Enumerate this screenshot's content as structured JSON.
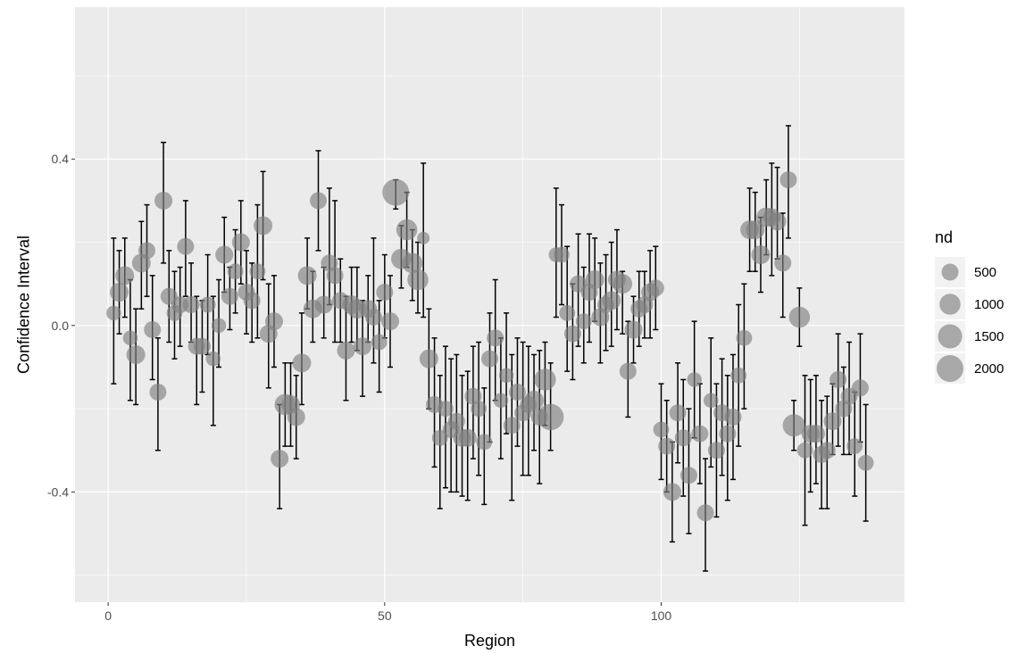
{
  "chart_data": {
    "type": "scatter",
    "xlabel": "Region",
    "ylabel": "Confidence Interval",
    "xlim": [
      -6,
      144
    ],
    "ylim": [
      -0.665,
      0.765
    ],
    "x_ticks": [
      0,
      50,
      100
    ],
    "x_tick_labels": [
      "0",
      "50",
      "100"
    ],
    "y_ticks": [
      -0.4,
      0.0,
      0.4
    ],
    "y_tick_labels": [
      "-0.4",
      "0.0",
      "0.4"
    ],
    "grid": true,
    "legend": {
      "title": "nd",
      "position": "right",
      "entries": [
        {
          "label": "500",
          "value": 500
        },
        {
          "label": "1000",
          "value": 1000
        },
        {
          "label": "1500",
          "value": 1500
        },
        {
          "label": "2000",
          "value": 2000
        }
      ]
    },
    "colors": {
      "panel": "#ebebeb",
      "grid": "#ffffff",
      "point": "#808080",
      "errorbar": "#000000"
    },
    "points": [
      {
        "x": 1,
        "y": 0.03,
        "lo": -0.14,
        "hi": 0.21,
        "nd": 300
      },
      {
        "x": 2,
        "y": 0.08,
        "lo": -0.02,
        "hi": 0.18,
        "nd": 700
      },
      {
        "x": 3,
        "y": 0.12,
        "lo": 0.02,
        "hi": 0.21,
        "nd": 700
      },
      {
        "x": 4,
        "y": -0.03,
        "lo": -0.18,
        "hi": 0.11,
        "nd": 300
      },
      {
        "x": 5,
        "y": -0.07,
        "lo": -0.19,
        "hi": 0.04,
        "nd": 700
      },
      {
        "x": 6,
        "y": 0.15,
        "lo": 0.04,
        "hi": 0.25,
        "nd": 700
      },
      {
        "x": 7,
        "y": 0.18,
        "lo": 0.07,
        "hi": 0.29,
        "nd": 500
      },
      {
        "x": 8,
        "y": -0.01,
        "lo": -0.13,
        "hi": 0.12,
        "nd": 500
      },
      {
        "x": 9,
        "y": -0.16,
        "lo": -0.3,
        "hi": -0.03,
        "nd": 500
      },
      {
        "x": 10,
        "y": 0.3,
        "lo": 0.15,
        "hi": 0.44,
        "nd": 600
      },
      {
        "x": 11,
        "y": 0.07,
        "lo": -0.04,
        "hi": 0.18,
        "nd": 500
      },
      {
        "x": 12,
        "y": 0.03,
        "lo": -0.08,
        "hi": 0.13,
        "nd": 400
      },
      {
        "x": 13,
        "y": 0.05,
        "lo": -0.05,
        "hi": 0.14,
        "nd": 500
      },
      {
        "x": 14,
        "y": 0.19,
        "lo": 0.07,
        "hi": 0.3,
        "nd": 500
      },
      {
        "x": 15,
        "y": 0.05,
        "lo": -0.04,
        "hi": 0.15,
        "nd": 500
      },
      {
        "x": 16,
        "y": -0.05,
        "lo": -0.19,
        "hi": 0.07,
        "nd": 500
      },
      {
        "x": 17,
        "y": -0.05,
        "lo": -0.16,
        "hi": 0.06,
        "nd": 500
      },
      {
        "x": 18,
        "y": 0.05,
        "lo": -0.07,
        "hi": 0.17,
        "nd": 400
      },
      {
        "x": 19,
        "y": -0.08,
        "lo": -0.24,
        "hi": 0.07,
        "nd": 300
      },
      {
        "x": 20,
        "y": 0.0,
        "lo": -0.1,
        "hi": 0.11,
        "nd": 300
      },
      {
        "x": 21,
        "y": 0.17,
        "lo": 0.08,
        "hi": 0.26,
        "nd": 600
      },
      {
        "x": 22,
        "y": 0.07,
        "lo": -0.01,
        "hi": 0.14,
        "nd": 500
      },
      {
        "x": 23,
        "y": 0.13,
        "lo": 0.03,
        "hi": 0.23,
        "nd": 400
      },
      {
        "x": 24,
        "y": 0.2,
        "lo": 0.1,
        "hi": 0.3,
        "nd": 600
      },
      {
        "x": 25,
        "y": 0.08,
        "lo": -0.02,
        "hi": 0.18,
        "nd": 500
      },
      {
        "x": 26,
        "y": 0.06,
        "lo": -0.04,
        "hi": 0.15,
        "nd": 500
      },
      {
        "x": 27,
        "y": 0.13,
        "lo": -0.03,
        "hi": 0.29,
        "nd": 400
      },
      {
        "x": 28,
        "y": 0.24,
        "lo": 0.11,
        "hi": 0.37,
        "nd": 700
      },
      {
        "x": 29,
        "y": -0.02,
        "lo": -0.15,
        "hi": 0.1,
        "nd": 600
      },
      {
        "x": 30,
        "y": 0.01,
        "lo": -0.1,
        "hi": 0.12,
        "nd": 600
      },
      {
        "x": 31,
        "y": -0.32,
        "lo": -0.44,
        "hi": -0.19,
        "nd": 600
      },
      {
        "x": 32,
        "y": -0.19,
        "lo": -0.29,
        "hi": -0.09,
        "nd": 1000
      },
      {
        "x": 33,
        "y": -0.19,
        "lo": -0.29,
        "hi": -0.09,
        "nd": 700
      },
      {
        "x": 34,
        "y": -0.22,
        "lo": -0.32,
        "hi": -0.12,
        "nd": 600
      },
      {
        "x": 35,
        "y": -0.09,
        "lo": -0.19,
        "hi": 0.03,
        "nd": 700
      },
      {
        "x": 36,
        "y": 0.12,
        "lo": 0.04,
        "hi": 0.21,
        "nd": 700
      },
      {
        "x": 37,
        "y": 0.04,
        "lo": -0.04,
        "hi": 0.13,
        "nd": 700
      },
      {
        "x": 38,
        "y": 0.3,
        "lo": 0.18,
        "hi": 0.42,
        "nd": 500
      },
      {
        "x": 39,
        "y": 0.05,
        "lo": -0.03,
        "hi": 0.14,
        "nd": 600
      },
      {
        "x": 40,
        "y": 0.15,
        "lo": 0.05,
        "hi": 0.33,
        "nd": 500
      },
      {
        "x": 41,
        "y": 0.12,
        "lo": -0.04,
        "hi": 0.3,
        "nd": 500
      },
      {
        "x": 42,
        "y": 0.06,
        "lo": -0.04,
        "hi": 0.16,
        "nd": 500
      },
      {
        "x": 43,
        "y": -0.06,
        "lo": -0.18,
        "hi": 0.07,
        "nd": 600
      },
      {
        "x": 44,
        "y": 0.05,
        "lo": -0.04,
        "hi": 0.14,
        "nd": 700
      },
      {
        "x": 45,
        "y": 0.04,
        "lo": -0.06,
        "hi": 0.14,
        "nd": 800
      },
      {
        "x": 46,
        "y": -0.05,
        "lo": -0.17,
        "hi": 0.06,
        "nd": 600
      },
      {
        "x": 47,
        "y": 0.04,
        "lo": -0.04,
        "hi": 0.12,
        "nd": 600
      },
      {
        "x": 48,
        "y": 0.02,
        "lo": -0.09,
        "hi": 0.21,
        "nd": 500
      },
      {
        "x": 49,
        "y": -0.04,
        "lo": -0.16,
        "hi": 0.06,
        "nd": 400
      },
      {
        "x": 50,
        "y": 0.08,
        "lo": -0.03,
        "hi": 0.17,
        "nd": 500
      },
      {
        "x": 51,
        "y": 0.01,
        "lo": -0.1,
        "hi": 0.12,
        "nd": 600
      },
      {
        "x": 52,
        "y": 0.32,
        "lo": 0.28,
        "hi": 0.35,
        "nd": 2000
      },
      {
        "x": 53,
        "y": 0.16,
        "lo": 0.09,
        "hi": 0.24,
        "nd": 900
      },
      {
        "x": 54,
        "y": 0.23,
        "lo": 0.14,
        "hi": 0.32,
        "nd": 1000
      },
      {
        "x": 55,
        "y": 0.15,
        "lo": 0.06,
        "hi": 0.23,
        "nd": 900
      },
      {
        "x": 56,
        "y": 0.11,
        "lo": 0.03,
        "hi": 0.2,
        "nd": 1000
      },
      {
        "x": 57,
        "y": 0.21,
        "lo": 0.02,
        "hi": 0.39,
        "nd": 150
      },
      {
        "x": 58,
        "y": -0.08,
        "lo": -0.2,
        "hi": 0.04,
        "nd": 700
      },
      {
        "x": 59,
        "y": -0.19,
        "lo": -0.34,
        "hi": -0.03,
        "nd": 500
      },
      {
        "x": 60,
        "y": -0.27,
        "lo": -0.44,
        "hi": -0.12,
        "nd": 400
      },
      {
        "x": 61,
        "y": -0.2,
        "lo": -0.39,
        "hi": -0.05,
        "nd": 400
      },
      {
        "x": 62,
        "y": -0.25,
        "lo": -0.4,
        "hi": -0.08,
        "nd": 500
      },
      {
        "x": 63,
        "y": -0.23,
        "lo": -0.4,
        "hi": -0.07,
        "nd": 500
      },
      {
        "x": 64,
        "y": -0.27,
        "lo": -0.41,
        "hi": -0.12,
        "nd": 600
      },
      {
        "x": 65,
        "y": -0.27,
        "lo": -0.42,
        "hi": -0.11,
        "nd": 600
      },
      {
        "x": 66,
        "y": -0.17,
        "lo": -0.32,
        "hi": -0.05,
        "nd": 500
      },
      {
        "x": 67,
        "y": -0.2,
        "lo": -0.36,
        "hi": -0.04,
        "nd": 400
      },
      {
        "x": 68,
        "y": -0.28,
        "lo": -0.43,
        "hi": -0.15,
        "nd": 400
      },
      {
        "x": 69,
        "y": -0.08,
        "lo": -0.28,
        "hi": 0.03,
        "nd": 500
      },
      {
        "x": 70,
        "y": -0.03,
        "lo": -0.18,
        "hi": 0.11,
        "nd": 500
      },
      {
        "x": 71,
        "y": -0.18,
        "lo": -0.32,
        "hi": -0.03,
        "nd": 300
      },
      {
        "x": 72,
        "y": -0.12,
        "lo": -0.26,
        "hi": 0.03,
        "nd": 300
      },
      {
        "x": 73,
        "y": -0.24,
        "lo": -0.42,
        "hi": -0.07,
        "nd": 500
      },
      {
        "x": 74,
        "y": -0.16,
        "lo": -0.29,
        "hi": -0.03,
        "nd": 500
      },
      {
        "x": 75,
        "y": -0.21,
        "lo": -0.36,
        "hi": -0.04,
        "nd": 500
      },
      {
        "x": 76,
        "y": -0.19,
        "lo": -0.36,
        "hi": -0.05,
        "nd": 500
      },
      {
        "x": 77,
        "y": -0.18,
        "lo": -0.3,
        "hi": -0.07,
        "nd": 800
      },
      {
        "x": 78,
        "y": -0.22,
        "lo": -0.38,
        "hi": -0.06,
        "nd": 500
      },
      {
        "x": 79,
        "y": -0.13,
        "lo": -0.24,
        "hi": -0.04,
        "nd": 1100
      },
      {
        "x": 80,
        "y": -0.22,
        "lo": -0.3,
        "hi": -0.09,
        "nd": 1900
      },
      {
        "x": 81,
        "y": 0.17,
        "lo": 0.02,
        "hi": 0.33,
        "nd": 300
      },
      {
        "x": 82,
        "y": 0.17,
        "lo": 0.05,
        "hi": 0.29,
        "nd": 400
      },
      {
        "x": 83,
        "y": 0.03,
        "lo": -0.11,
        "hi": 0.19,
        "nd": 400
      },
      {
        "x": 84,
        "y": -0.02,
        "lo": -0.13,
        "hi": 0.1,
        "nd": 500
      },
      {
        "x": 85,
        "y": 0.1,
        "lo": -0.05,
        "hi": 0.22,
        "nd": 500
      },
      {
        "x": 86,
        "y": 0.01,
        "lo": -0.09,
        "hi": 0.14,
        "nd": 400
      },
      {
        "x": 87,
        "y": 0.08,
        "lo": -0.04,
        "hi": 0.22,
        "nd": 500
      },
      {
        "x": 88,
        "y": 0.11,
        "lo": 0.01,
        "hi": 0.21,
        "nd": 700
      },
      {
        "x": 89,
        "y": 0.02,
        "lo": -0.09,
        "hi": 0.15,
        "nd": 600
      },
      {
        "x": 90,
        "y": 0.05,
        "lo": -0.06,
        "hi": 0.17,
        "nd": 500
      },
      {
        "x": 91,
        "y": 0.06,
        "lo": -0.05,
        "hi": 0.2,
        "nd": 700
      },
      {
        "x": 92,
        "y": 0.11,
        "lo": -0.01,
        "hi": 0.23,
        "nd": 600
      },
      {
        "x": 93,
        "y": 0.1,
        "lo": -0.02,
        "hi": 0.13,
        "nd": 800
      },
      {
        "x": 94,
        "y": -0.11,
        "lo": -0.22,
        "hi": 0.01,
        "nd": 500
      },
      {
        "x": 95,
        "y": -0.01,
        "lo": -0.09,
        "hi": 0.07,
        "nd": 600
      },
      {
        "x": 96,
        "y": 0.04,
        "lo": -0.05,
        "hi": 0.13,
        "nd": 500
      },
      {
        "x": 97,
        "y": 0.05,
        "lo": -0.03,
        "hi": 0.13,
        "nd": 500
      },
      {
        "x": 98,
        "y": 0.08,
        "lo": -0.03,
        "hi": 0.18,
        "nd": 600
      },
      {
        "x": 99,
        "y": 0.09,
        "lo": -0.01,
        "hi": 0.19,
        "nd": 500
      },
      {
        "x": 100,
        "y": -0.25,
        "lo": -0.37,
        "hi": -0.14,
        "nd": 400
      },
      {
        "x": 101,
        "y": -0.29,
        "lo": -0.4,
        "hi": -0.18,
        "nd": 500
      },
      {
        "x": 102,
        "y": -0.4,
        "lo": -0.52,
        "hi": -0.28,
        "nd": 600
      },
      {
        "x": 103,
        "y": -0.21,
        "lo": -0.33,
        "hi": -0.09,
        "nd": 500
      },
      {
        "x": 104,
        "y": -0.27,
        "lo": -0.41,
        "hi": -0.13,
        "nd": 500
      },
      {
        "x": 105,
        "y": -0.36,
        "lo": -0.5,
        "hi": -0.2,
        "nd": 500
      },
      {
        "x": 106,
        "y": -0.13,
        "lo": -0.27,
        "hi": 0.01,
        "nd": 300
      },
      {
        "x": 107,
        "y": -0.26,
        "lo": -0.38,
        "hi": -0.14,
        "nd": 500
      },
      {
        "x": 108,
        "y": -0.45,
        "lo": -0.59,
        "hi": -0.32,
        "nd": 500
      },
      {
        "x": 109,
        "y": -0.18,
        "lo": -0.34,
        "hi": -0.03,
        "nd": 300
      },
      {
        "x": 110,
        "y": -0.3,
        "lo": -0.46,
        "hi": -0.14,
        "nd": 500
      },
      {
        "x": 111,
        "y": -0.21,
        "lo": -0.36,
        "hi": -0.08,
        "nd": 500
      },
      {
        "x": 112,
        "y": -0.26,
        "lo": -0.42,
        "hi": -0.12,
        "nd": 500
      },
      {
        "x": 113,
        "y": -0.22,
        "lo": -0.37,
        "hi": -0.07,
        "nd": 500
      },
      {
        "x": 114,
        "y": -0.12,
        "lo": -0.29,
        "hi": 0.05,
        "nd": 400
      },
      {
        "x": 115,
        "y": -0.03,
        "lo": -0.2,
        "hi": 0.1,
        "nd": 400
      },
      {
        "x": 116,
        "y": 0.23,
        "lo": 0.13,
        "hi": 0.33,
        "nd": 700
      },
      {
        "x": 117,
        "y": 0.23,
        "lo": 0.13,
        "hi": 0.32,
        "nd": 700
      },
      {
        "x": 118,
        "y": 0.17,
        "lo": 0.08,
        "hi": 0.26,
        "nd": 700
      },
      {
        "x": 119,
        "y": 0.26,
        "lo": 0.17,
        "hi": 0.35,
        "nd": 800
      },
      {
        "x": 120,
        "y": 0.26,
        "lo": 0.12,
        "hi": 0.39,
        "nd": 600
      },
      {
        "x": 121,
        "y": 0.25,
        "lo": 0.16,
        "hi": 0.38,
        "nd": 600
      },
      {
        "x": 122,
        "y": 0.15,
        "lo": 0.02,
        "hi": 0.27,
        "nd": 500
      },
      {
        "x": 123,
        "y": 0.35,
        "lo": 0.21,
        "hi": 0.48,
        "nd": 500
      },
      {
        "x": 125,
        "y": 0.02,
        "lo": -0.05,
        "hi": 0.09,
        "nd": 1000
      },
      {
        "x": 124,
        "y": -0.24,
        "lo": -0.3,
        "hi": -0.18,
        "nd": 1200
      },
      {
        "x": 126,
        "y": -0.3,
        "lo": -0.48,
        "hi": -0.12,
        "nd": 400
      },
      {
        "x": 127,
        "y": -0.26,
        "lo": -0.4,
        "hi": -0.13,
        "nd": 600
      },
      {
        "x": 128,
        "y": -0.26,
        "lo": -0.38,
        "hi": -0.12,
        "nd": 600
      },
      {
        "x": 129,
        "y": -0.31,
        "lo": -0.44,
        "hi": -0.18,
        "nd": 500
      },
      {
        "x": 130,
        "y": -0.3,
        "lo": -0.44,
        "hi": -0.17,
        "nd": 500
      },
      {
        "x": 131,
        "y": -0.23,
        "lo": -0.31,
        "hi": -0.14,
        "nd": 600
      },
      {
        "x": 132,
        "y": -0.13,
        "lo": -0.29,
        "hi": -0.02,
        "nd": 500
      },
      {
        "x": 133,
        "y": -0.2,
        "lo": -0.31,
        "hi": -0.1,
        "nd": 500
      },
      {
        "x": 134,
        "y": -0.17,
        "lo": -0.31,
        "hi": -0.04,
        "nd": 500
      },
      {
        "x": 135,
        "y": -0.29,
        "lo": -0.41,
        "hi": -0.16,
        "nd": 400
      },
      {
        "x": 136,
        "y": -0.15,
        "lo": -0.28,
        "hi": -0.02,
        "nd": 500
      },
      {
        "x": 137,
        "y": -0.33,
        "lo": -0.47,
        "hi": -0.19,
        "nd": 400
      }
    ]
  }
}
